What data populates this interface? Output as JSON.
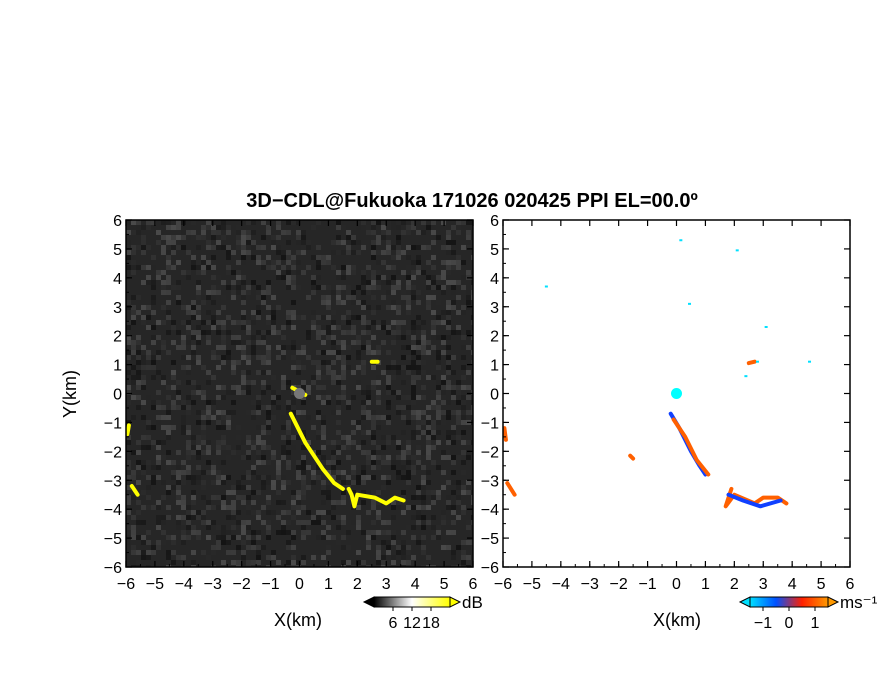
{
  "title": "3D−CDL@Fukuoka 171026 020425 PPI EL=00.0º",
  "chart_data": [
    {
      "type": "heatmap",
      "panel": "reflectivity",
      "xlabel": "X(km)",
      "ylabel": "Y(km)",
      "xlim": [
        -6,
        6
      ],
      "ylim": [
        -6,
        6
      ],
      "xticks": [
        "−6",
        "−5",
        "−4",
        "−3",
        "−2",
        "−1",
        "0",
        "1",
        "2",
        "3",
        "4",
        "5",
        "6"
      ],
      "yticks": [
        "−6",
        "−5",
        "−4",
        "−3",
        "−2",
        "−1",
        "0",
        "1",
        "2",
        "3",
        "4",
        "5",
        "6"
      ],
      "colorbar": {
        "unit": "dB",
        "ticks": [
          "6",
          "12",
          "18"
        ],
        "range": [
          0,
          24
        ],
        "colors": [
          "#000000",
          "#ffffff",
          "#ffff00"
        ]
      },
      "background": "noise",
      "echoes": [
        {
          "points": [
            [
              -0.3,
              -0.7
            ],
            [
              0.2,
              -1.7
            ],
            [
              0.8,
              -2.6
            ],
            [
              1.2,
              -3.1
            ],
            [
              1.5,
              -3.3
            ]
          ],
          "color": "#ffff00"
        },
        {
          "points": [
            [
              1.7,
              -3.3
            ],
            [
              1.8,
              -3.5
            ],
            [
              1.9,
              -3.9
            ],
            [
              2.0,
              -3.5
            ],
            [
              2.6,
              -3.6
            ],
            [
              3.0,
              -3.8
            ],
            [
              3.3,
              -3.6
            ],
            [
              3.6,
              -3.7
            ]
          ],
          "color": "#ffff00"
        },
        {
          "points": [
            [
              -5.9,
              -1.1
            ],
            [
              -5.95,
              -1.4
            ]
          ],
          "color": "#ffff00"
        },
        {
          "points": [
            [
              -5.8,
              -3.2
            ],
            [
              -5.6,
              -3.5
            ]
          ],
          "color": "#ffff00"
        },
        {
          "points": [
            [
              2.5,
              1.1
            ],
            [
              2.7,
              1.1
            ]
          ],
          "color": "#ffff00"
        },
        {
          "points": [
            [
              -0.25,
              0.2
            ],
            [
              0.2,
              -0.05
            ]
          ],
          "color": "#ffff00"
        }
      ],
      "center_marker": {
        "x": 0,
        "y": 0,
        "color": "#777777"
      }
    },
    {
      "type": "heatmap",
      "panel": "doppler-velocity",
      "xlabel": "X(km)",
      "xlim": [
        -6,
        6
      ],
      "ylim": [
        -6,
        6
      ],
      "xticks": [
        "−6",
        "−5",
        "−4",
        "−3",
        "−2",
        "−1",
        "0",
        "1",
        "2",
        "3",
        "4",
        "5",
        "6"
      ],
      "yticks": [
        "−6",
        "−5",
        "−4",
        "−3",
        "−2",
        "−1",
        "0",
        "1",
        "2",
        "3",
        "4",
        "5",
        "6"
      ],
      "colorbar": {
        "unit": "ms⁻¹",
        "ticks": [
          "−1",
          "0",
          "1"
        ],
        "range": [
          -1.5,
          1.5
        ],
        "colors": [
          "#00e0ff",
          "#0050ff",
          "#ff2000",
          "#ff9900"
        ]
      },
      "echoes": [
        {
          "points": [
            [
              -0.2,
              -0.7
            ],
            [
              0.1,
              -1.2
            ],
            [
              0.5,
              -2.0
            ],
            [
              0.8,
              -2.5
            ],
            [
              1.0,
              -2.8
            ]
          ],
          "color": "#1040ff"
        },
        {
          "points": [
            [
              -0.1,
              -0.9
            ],
            [
              0.3,
              -1.5
            ],
            [
              0.7,
              -2.3
            ],
            [
              1.1,
              -2.8
            ]
          ],
          "color": "#ff6000"
        },
        {
          "points": [
            [
              1.9,
              -3.3
            ],
            [
              1.7,
              -3.9
            ],
            [
              2.0,
              -3.5
            ],
            [
              2.7,
              -3.8
            ],
            [
              3.0,
              -3.6
            ],
            [
              3.5,
              -3.6
            ],
            [
              3.8,
              -3.8
            ]
          ],
          "color": "#ff6000"
        },
        {
          "points": [
            [
              1.8,
              -3.5
            ],
            [
              2.3,
              -3.7
            ],
            [
              2.9,
              -3.9
            ],
            [
              3.6,
              -3.7
            ]
          ],
          "color": "#1040ff"
        },
        {
          "points": [
            [
              -5.95,
              -1.2
            ],
            [
              -5.9,
              -1.6
            ]
          ],
          "color": "#ff6000"
        },
        {
          "points": [
            [
              -5.85,
              -3.1
            ],
            [
              -5.6,
              -3.5
            ]
          ],
          "color": "#ff6000"
        },
        {
          "points": [
            [
              -1.6,
              -2.15
            ],
            [
              -1.5,
              -2.25
            ]
          ],
          "color": "#ff6000"
        },
        {
          "points": [
            [
              2.5,
              1.05
            ],
            [
              2.7,
              1.1
            ]
          ],
          "color": "#ff6000"
        }
      ],
      "speckles": [
        {
          "x": 0.15,
          "y": 5.3,
          "color": "#00e0ff"
        },
        {
          "x": 2.1,
          "y": 4.95,
          "color": "#00e0ff"
        },
        {
          "x": -4.5,
          "y": 3.7,
          "color": "#00e0ff"
        },
        {
          "x": 0.45,
          "y": 3.1,
          "color": "#00e0ff"
        },
        {
          "x": 3.1,
          "y": 2.3,
          "color": "#00e0ff"
        },
        {
          "x": 2.8,
          "y": 1.1,
          "color": "#00e0ff"
        },
        {
          "x": 4.6,
          "y": 1.1,
          "color": "#00e0ff"
        },
        {
          "x": 2.4,
          "y": 0.6,
          "color": "#00e0ff"
        }
      ],
      "center_marker": {
        "x": 0,
        "y": 0,
        "color": "#00ffff"
      }
    }
  ]
}
